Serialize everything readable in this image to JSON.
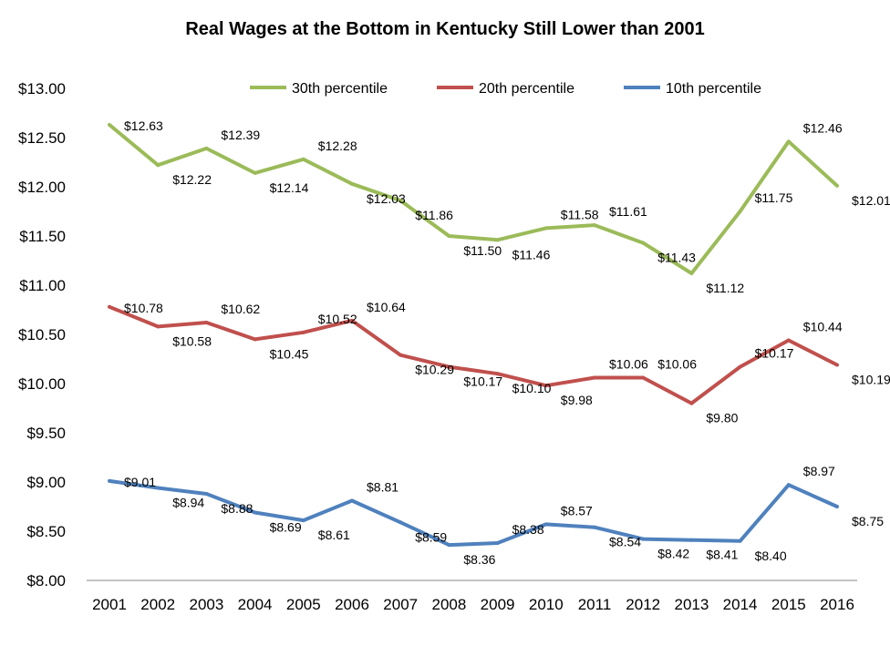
{
  "chart_data": {
    "type": "line",
    "title": "Real Wages at the Bottom in Kentucky Still Lower than 2001",
    "xlabel": "",
    "ylabel": "",
    "categories": [
      "2001",
      "2002",
      "2003",
      "2004",
      "2005",
      "2006",
      "2007",
      "2008",
      "2009",
      "2010",
      "2011",
      "2012",
      "2013",
      "2014",
      "2015",
      "2016"
    ],
    "y_ticks": [
      "$8.00",
      "$8.50",
      "$9.00",
      "$9.50",
      "$10.00",
      "$10.50",
      "$11.00",
      "$11.50",
      "$12.00",
      "$12.50",
      "$13.00"
    ],
    "ylim": [
      8,
      13
    ],
    "grid": false,
    "legend_position": "top",
    "series": [
      {
        "name": "30th percentile",
        "color": "#9BBB59",
        "values": [
          12.63,
          12.22,
          12.39,
          12.14,
          12.28,
          12.03,
          11.86,
          11.5,
          11.46,
          11.58,
          11.61,
          11.43,
          11.12,
          11.75,
          12.46,
          12.01
        ],
        "labels": [
          "$12.63",
          "$12.22",
          "$12.39",
          "$12.14",
          "$12.28",
          "$12.03",
          "$11.86",
          "$11.50",
          "$11.46",
          "$11.58",
          "$11.61",
          "$11.43",
          "$11.12",
          "$11.75",
          "$12.46",
          "$12.01"
        ]
      },
      {
        "name": "20th percentile",
        "color": "#C0504D",
        "values": [
          10.78,
          10.58,
          10.62,
          10.45,
          10.52,
          10.64,
          10.29,
          10.17,
          10.1,
          9.98,
          10.06,
          10.06,
          9.8,
          10.17,
          10.44,
          10.19
        ],
        "labels": [
          "$10.78",
          "$10.58",
          "$10.62",
          "$10.45",
          "$10.52",
          "$10.64",
          "$10.29",
          "$10.17",
          "$10.10",
          "$9.98",
          "$10.06",
          "$10.06",
          "$9.80",
          "$10.17",
          "$10.44",
          "$10.19"
        ]
      },
      {
        "name": "10th percentile",
        "color": "#4F81BD",
        "values": [
          9.01,
          8.94,
          8.88,
          8.69,
          8.61,
          8.81,
          8.59,
          8.36,
          8.38,
          8.57,
          8.54,
          8.42,
          8.41,
          8.4,
          8.97,
          8.75
        ],
        "labels": [
          "$9.01",
          "$8.94",
          "$8.88",
          "$8.69",
          "$8.61",
          "$8.81",
          "$8.59",
          "$8.36",
          "$8.38",
          "$8.57",
          "$8.54",
          "$8.42",
          "$8.41",
          "$8.40",
          "$8.97",
          "$8.75"
        ]
      }
    ]
  }
}
